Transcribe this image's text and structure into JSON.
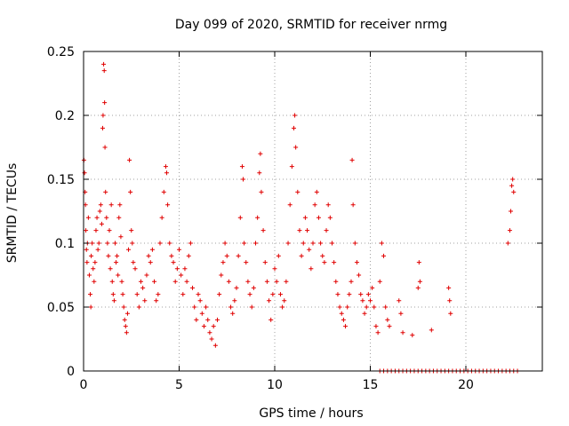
{
  "chart_data": {
    "type": "scatter",
    "title": "Day 099 of 2020, SRMTID for receiver nrmg",
    "xlabel": "GPS time / hours",
    "ylabel": "SRMTID / TECUs",
    "xlim": [
      0,
      24
    ],
    "ylim": [
      0,
      0.25
    ],
    "grid": true,
    "marker": "+",
    "x_ticks": [
      {
        "value": 0,
        "label": "0"
      },
      {
        "value": 5,
        "label": "5"
      },
      {
        "value": 10,
        "label": "10"
      },
      {
        "value": 15,
        "label": "15"
      },
      {
        "value": 20,
        "label": "20"
      }
    ],
    "y_ticks": [
      {
        "value": 0,
        "label": "0"
      },
      {
        "value": 0.05,
        "label": "0.05"
      },
      {
        "value": 0.1,
        "label": "0.1"
      },
      {
        "value": 0.15,
        "label": "0.15"
      },
      {
        "value": 0.2,
        "label": "0.2"
      },
      {
        "value": 0.25,
        "label": "0.25"
      }
    ],
    "series": [
      {
        "name": "SRMTID",
        "color": "#e00000",
        "marker_size": 5,
        "points": [
          [
            0.02,
            0.165
          ],
          [
            0.05,
            0.155
          ],
          [
            0.08,
            0.14
          ],
          [
            0.1,
            0.13
          ],
          [
            0.12,
            0.11
          ],
          [
            0.15,
            0.095
          ],
          [
            0.18,
            0.085
          ],
          [
            0.2,
            0.1
          ],
          [
            0.25,
            0.12
          ],
          [
            0.3,
            0.075
          ],
          [
            0.35,
            0.06
          ],
          [
            0.38,
            0.05
          ],
          [
            0.4,
            0.09
          ],
          [
            0.45,
            0.1
          ],
          [
            0.5,
            0.08
          ],
          [
            0.55,
            0.07
          ],
          [
            0.6,
            0.085
          ],
          [
            0.65,
            0.11
          ],
          [
            0.7,
            0.12
          ],
          [
            0.75,
            0.095
          ],
          [
            0.8,
            0.1
          ],
          [
            0.85,
            0.125
          ],
          [
            0.9,
            0.13
          ],
          [
            0.95,
            0.115
          ],
          [
            1.0,
            0.19
          ],
          [
            1.02,
            0.2
          ],
          [
            1.05,
            0.24
          ],
          [
            1.08,
            0.235
          ],
          [
            1.1,
            0.21
          ],
          [
            1.12,
            0.175
          ],
          [
            1.15,
            0.14
          ],
          [
            1.2,
            0.12
          ],
          [
            1.25,
            0.1
          ],
          [
            1.3,
            0.09
          ],
          [
            1.35,
            0.11
          ],
          [
            1.4,
            0.08
          ],
          [
            1.45,
            0.13
          ],
          [
            1.5,
            0.07
          ],
          [
            1.55,
            0.06
          ],
          [
            1.6,
            0.055
          ],
          [
            1.65,
            0.1
          ],
          [
            1.7,
            0.085
          ],
          [
            1.75,
            0.09
          ],
          [
            1.8,
            0.075
          ],
          [
            1.85,
            0.12
          ],
          [
            1.9,
            0.13
          ],
          [
            1.95,
            0.105
          ],
          [
            2.0,
            0.07
          ],
          [
            2.05,
            0.06
          ],
          [
            2.1,
            0.05
          ],
          [
            2.15,
            0.04
          ],
          [
            2.2,
            0.035
          ],
          [
            2.25,
            0.03
          ],
          [
            2.3,
            0.045
          ],
          [
            2.35,
            0.095
          ],
          [
            2.4,
            0.165
          ],
          [
            2.45,
            0.14
          ],
          [
            2.5,
            0.11
          ],
          [
            2.55,
            0.1
          ],
          [
            2.6,
            0.085
          ],
          [
            2.7,
            0.08
          ],
          [
            2.8,
            0.06
          ],
          [
            2.9,
            0.05
          ],
          [
            3.0,
            0.07
          ],
          [
            3.1,
            0.065
          ],
          [
            3.2,
            0.055
          ],
          [
            3.3,
            0.075
          ],
          [
            3.4,
            0.09
          ],
          [
            3.5,
            0.085
          ],
          [
            3.6,
            0.095
          ],
          [
            3.7,
            0.07
          ],
          [
            3.8,
            0.055
          ],
          [
            3.9,
            0.06
          ],
          [
            4.0,
            0.1
          ],
          [
            4.1,
            0.12
          ],
          [
            4.2,
            0.14
          ],
          [
            4.3,
            0.16
          ],
          [
            4.35,
            0.155
          ],
          [
            4.4,
            0.13
          ],
          [
            4.5,
            0.1
          ],
          [
            4.6,
            0.09
          ],
          [
            4.7,
            0.085
          ],
          [
            4.8,
            0.07
          ],
          [
            4.9,
            0.08
          ],
          [
            5.0,
            0.095
          ],
          [
            5.1,
            0.075
          ],
          [
            5.2,
            0.06
          ],
          [
            5.3,
            0.08
          ],
          [
            5.4,
            0.07
          ],
          [
            5.5,
            0.09
          ],
          [
            5.6,
            0.1
          ],
          [
            5.7,
            0.065
          ],
          [
            5.8,
            0.05
          ],
          [
            5.9,
            0.04
          ],
          [
            6.0,
            0.06
          ],
          [
            6.1,
            0.055
          ],
          [
            6.2,
            0.045
          ],
          [
            6.3,
            0.035
          ],
          [
            6.4,
            0.05
          ],
          [
            6.5,
            0.04
          ],
          [
            6.6,
            0.03
          ],
          [
            6.7,
            0.025
          ],
          [
            6.8,
            0.035
          ],
          [
            6.9,
            0.02
          ],
          [
            7.0,
            0.04
          ],
          [
            7.1,
            0.06
          ],
          [
            7.2,
            0.075
          ],
          [
            7.3,
            0.085
          ],
          [
            7.4,
            0.1
          ],
          [
            7.5,
            0.09
          ],
          [
            7.6,
            0.07
          ],
          [
            7.7,
            0.05
          ],
          [
            7.8,
            0.045
          ],
          [
            7.9,
            0.055
          ],
          [
            8.0,
            0.065
          ],
          [
            8.1,
            0.09
          ],
          [
            8.2,
            0.12
          ],
          [
            8.3,
            0.16
          ],
          [
            8.35,
            0.15
          ],
          [
            8.4,
            0.1
          ],
          [
            8.5,
            0.085
          ],
          [
            8.6,
            0.07
          ],
          [
            8.7,
            0.06
          ],
          [
            8.8,
            0.05
          ],
          [
            8.9,
            0.065
          ],
          [
            9.0,
            0.1
          ],
          [
            9.1,
            0.12
          ],
          [
            9.2,
            0.155
          ],
          [
            9.25,
            0.17
          ],
          [
            9.3,
            0.14
          ],
          [
            9.4,
            0.11
          ],
          [
            9.5,
            0.085
          ],
          [
            9.6,
            0.07
          ],
          [
            9.7,
            0.055
          ],
          [
            9.8,
            0.04
          ],
          [
            9.9,
            0.06
          ],
          [
            10.0,
            0.08
          ],
          [
            10.1,
            0.07
          ],
          [
            10.2,
            0.09
          ],
          [
            10.3,
            0.06
          ],
          [
            10.4,
            0.05
          ],
          [
            10.5,
            0.055
          ],
          [
            10.6,
            0.07
          ],
          [
            10.7,
            0.1
          ],
          [
            10.8,
            0.13
          ],
          [
            10.9,
            0.16
          ],
          [
            11.0,
            0.19
          ],
          [
            11.05,
            0.2
          ],
          [
            11.1,
            0.175
          ],
          [
            11.2,
            0.14
          ],
          [
            11.3,
            0.11
          ],
          [
            11.4,
            0.09
          ],
          [
            11.5,
            0.1
          ],
          [
            11.6,
            0.12
          ],
          [
            11.7,
            0.11
          ],
          [
            11.8,
            0.095
          ],
          [
            11.9,
            0.08
          ],
          [
            12.0,
            0.1
          ],
          [
            12.1,
            0.13
          ],
          [
            12.2,
            0.14
          ],
          [
            12.3,
            0.12
          ],
          [
            12.4,
            0.1
          ],
          [
            12.5,
            0.09
          ],
          [
            12.6,
            0.085
          ],
          [
            12.7,
            0.11
          ],
          [
            12.8,
            0.13
          ],
          [
            12.9,
            0.12
          ],
          [
            13.0,
            0.1
          ],
          [
            13.1,
            0.085
          ],
          [
            13.2,
            0.07
          ],
          [
            13.3,
            0.06
          ],
          [
            13.4,
            0.05
          ],
          [
            13.5,
            0.045
          ],
          [
            13.6,
            0.04
          ],
          [
            13.7,
            0.035
          ],
          [
            13.8,
            0.05
          ],
          [
            13.9,
            0.06
          ],
          [
            14.0,
            0.07
          ],
          [
            14.05,
            0.165
          ],
          [
            14.1,
            0.13
          ],
          [
            14.2,
            0.1
          ],
          [
            14.3,
            0.085
          ],
          [
            14.4,
            0.075
          ],
          [
            14.5,
            0.06
          ],
          [
            14.6,
            0.055
          ],
          [
            14.7,
            0.045
          ],
          [
            14.8,
            0.05
          ],
          [
            14.9,
            0.06
          ],
          [
            15.0,
            0.055
          ],
          [
            15.1,
            0.065
          ],
          [
            15.2,
            0.05
          ],
          [
            15.3,
            0.035
          ],
          [
            15.4,
            0.03
          ],
          [
            15.5,
            0.07
          ],
          [
            15.6,
            0.1
          ],
          [
            15.7,
            0.09
          ],
          [
            15.8,
            0.05
          ],
          [
            15.9,
            0.04
          ],
          [
            16.0,
            0.035
          ],
          [
            16.5,
            0.055
          ],
          [
            16.6,
            0.045
          ],
          [
            16.7,
            0.03
          ],
          [
            17.2,
            0.028
          ],
          [
            17.5,
            0.065
          ],
          [
            17.55,
            0.085
          ],
          [
            17.6,
            0.07
          ],
          [
            18.2,
            0.032
          ],
          [
            19.1,
            0.065
          ],
          [
            19.15,
            0.055
          ],
          [
            19.2,
            0.045
          ],
          [
            22.2,
            0.1
          ],
          [
            22.3,
            0.11
          ],
          [
            22.35,
            0.125
          ],
          [
            22.4,
            0.145
          ],
          [
            22.45,
            0.15
          ],
          [
            22.5,
            0.14
          ],
          [
            15.5,
            0.0
          ],
          [
            15.7,
            0.0
          ],
          [
            15.9,
            0.0
          ],
          [
            16.1,
            0.0
          ],
          [
            16.3,
            0.0
          ],
          [
            16.5,
            0.0
          ],
          [
            16.7,
            0.0
          ],
          [
            16.9,
            0.0
          ],
          [
            17.1,
            0.0
          ],
          [
            17.3,
            0.0
          ],
          [
            17.5,
            0.0
          ],
          [
            17.7,
            0.0
          ],
          [
            17.9,
            0.0
          ],
          [
            18.1,
            0.0
          ],
          [
            18.3,
            0.0
          ],
          [
            18.5,
            0.0
          ],
          [
            18.7,
            0.0
          ],
          [
            18.9,
            0.0
          ],
          [
            19.1,
            0.0
          ],
          [
            19.3,
            0.0
          ],
          [
            19.5,
            0.0
          ],
          [
            19.7,
            0.0
          ],
          [
            19.9,
            0.0
          ],
          [
            20.1,
            0.0
          ],
          [
            20.3,
            0.0
          ],
          [
            20.5,
            0.0
          ],
          [
            20.7,
            0.0
          ],
          [
            20.9,
            0.0
          ],
          [
            21.1,
            0.0
          ],
          [
            21.3,
            0.0
          ],
          [
            21.5,
            0.0
          ],
          [
            21.7,
            0.0
          ],
          [
            21.9,
            0.0
          ],
          [
            22.1,
            0.0
          ],
          [
            22.3,
            0.0
          ],
          [
            22.5,
            0.0
          ],
          [
            22.7,
            0.0
          ]
        ]
      }
    ]
  }
}
